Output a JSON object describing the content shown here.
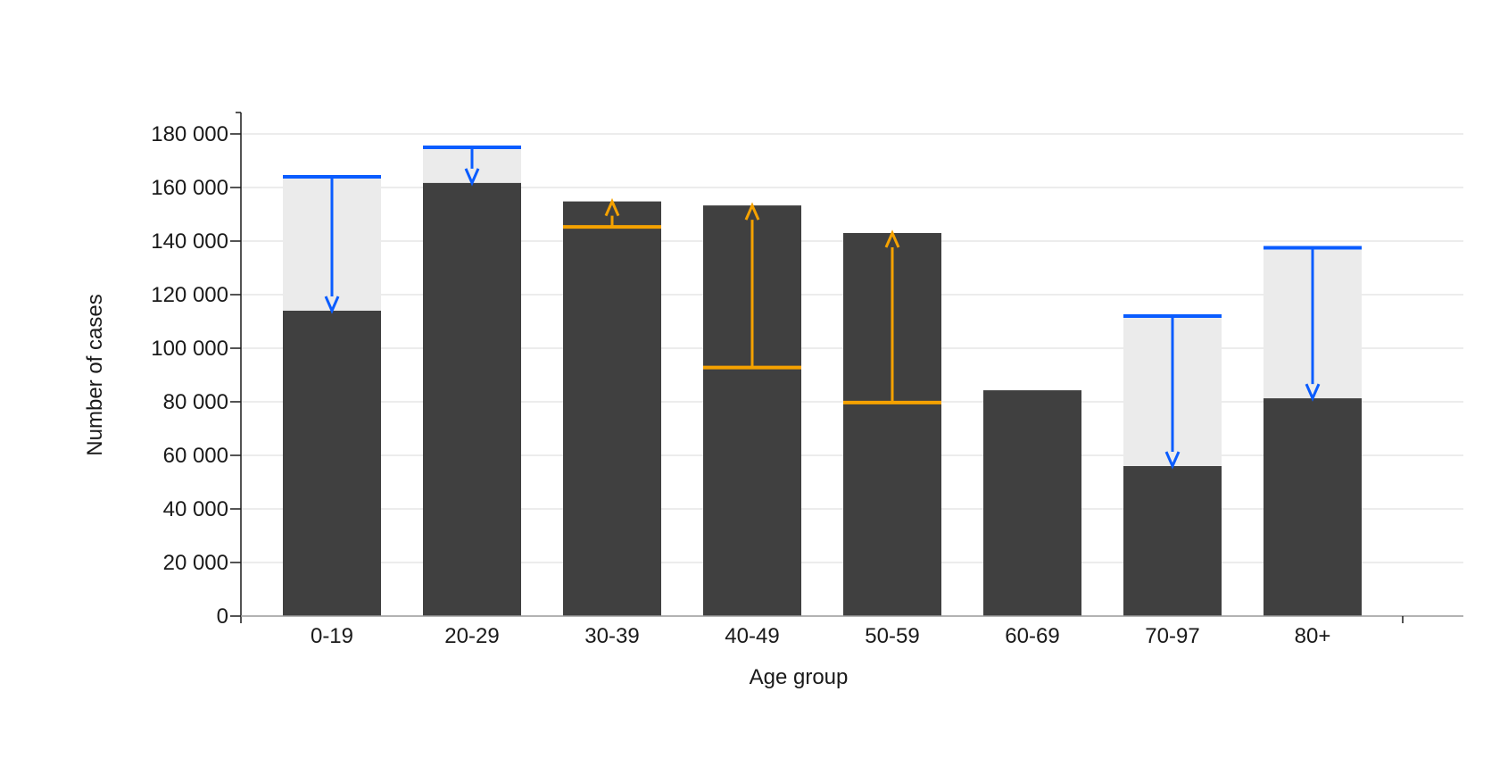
{
  "chart_data": {
    "type": "bar",
    "title": "",
    "xlabel": "Age group",
    "ylabel": "Number of cases",
    "ylim": [
      0,
      180000
    ],
    "yticks": [
      0,
      20000,
      40000,
      60000,
      80000,
      100000,
      120000,
      140000,
      160000,
      180000
    ],
    "ytick_labels": [
      "0",
      "20 000",
      "40 000",
      "60 000",
      "80 000",
      "100 000",
      "120 000",
      "140 000",
      "160 000",
      "180 000"
    ],
    "grid": true,
    "categories": [
      "0-19",
      "20-29",
      "30-39",
      "40-49",
      "50-59",
      "60-69",
      "70-97",
      "80+"
    ],
    "series": [
      {
        "values": [
          114000,
          161700,
          154800,
          153300,
          143000,
          84300,
          56000,
          81300
        ]
      },
      {
        "values": [
          164000,
          175000,
          145300,
          92800,
          79700,
          84300,
          112000,
          137500
        ]
      }
    ],
    "colors": {
      "bar": "#404040",
      "shade": "#ebebeb",
      "decrease": "#0a5cff",
      "increase": "#f5a200",
      "grid": "#d9d9d9",
      "axis": "#1a1a1a"
    }
  }
}
